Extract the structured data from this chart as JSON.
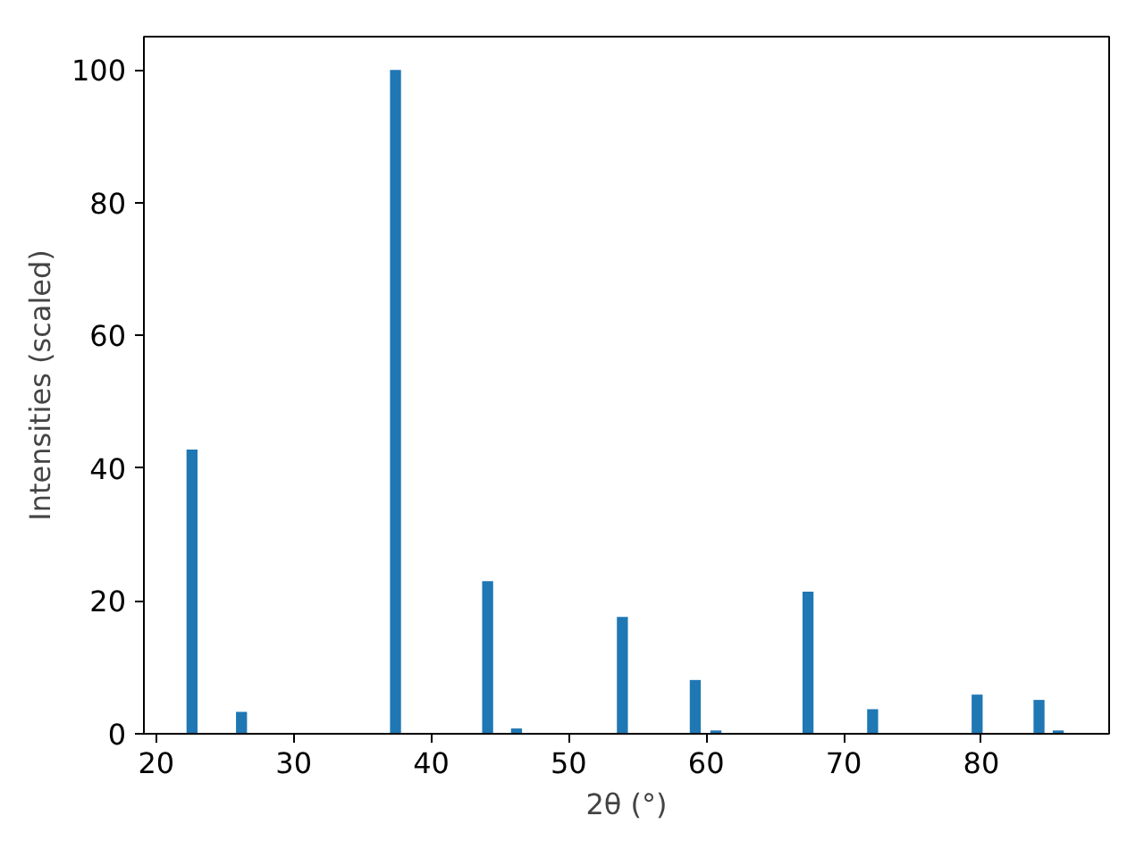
{
  "chart_data": {
    "type": "bar",
    "xlabel": "2θ (°)",
    "ylabel": "Intensities (scaled)",
    "x": [
      22.6,
      26.2,
      37.4,
      44.1,
      46.2,
      53.9,
      59.2,
      60.7,
      67.4,
      72.1,
      79.7,
      84.2,
      85.6
    ],
    "values": [
      42.8,
      3.3,
      100,
      23.0,
      0.8,
      17.6,
      8.1,
      0.5,
      21.4,
      3.7,
      5.9,
      5.1,
      0.5
    ],
    "color": "#1f77b4",
    "xlim": [
      19.1,
      89.3
    ],
    "ylim": [
      0,
      105
    ],
    "xticks": [
      20,
      30,
      40,
      50,
      60,
      70,
      80
    ],
    "yticks": [
      0,
      20,
      40,
      60,
      80,
      100
    ],
    "grid": false
  }
}
